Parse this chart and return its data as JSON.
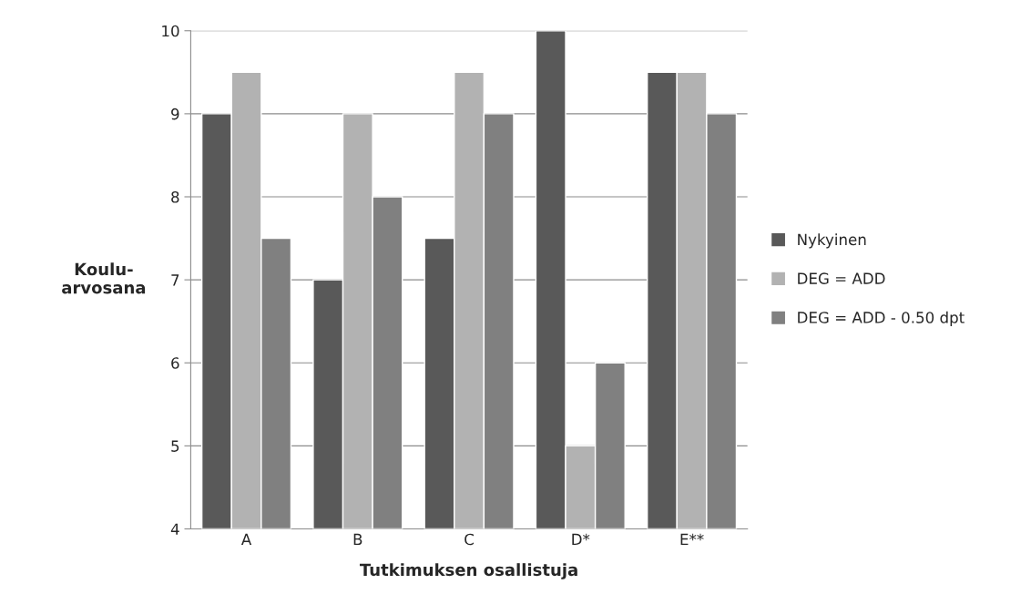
{
  "chart_data": {
    "type": "bar",
    "xlabel": "Tutkimuksen osallistuja",
    "ylabel": "Koulu-\narvosana",
    "categories": [
      "A",
      "B",
      "C",
      "D*",
      "E**"
    ],
    "series": [
      {
        "name": "Nykyinen",
        "color": "#595959",
        "values": [
          9,
          7,
          7.5,
          10,
          9.5
        ]
      },
      {
        "name": "DEG = ADD",
        "color": "#b2b2b2",
        "values": [
          9.5,
          9,
          9.5,
          5,
          9.5
        ]
      },
      {
        "name": "DEG = ADD - 0.50 dpt",
        "color": "#808080",
        "values": [
          7.5,
          8,
          9,
          6,
          9
        ]
      }
    ],
    "ylim": [
      4,
      10
    ],
    "yticks": [
      4,
      5,
      6,
      7,
      8,
      9,
      10
    ],
    "grid": "y",
    "legend": "right"
  }
}
